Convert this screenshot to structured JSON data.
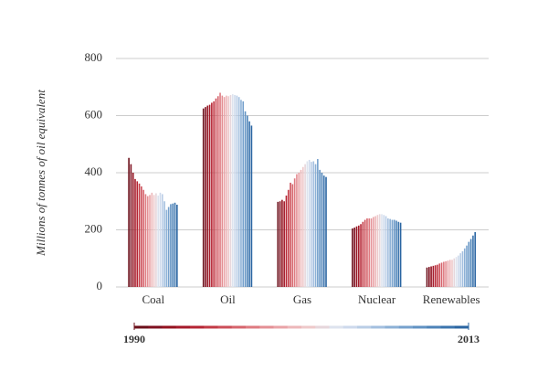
{
  "chart_data": {
    "type": "bar",
    "ylabel": "Millions of tonnes of oil equivalent",
    "categories": [
      "Coal",
      "Oil",
      "Gas",
      "Nuclear",
      "Renewables"
    ],
    "ylim": [
      0,
      800
    ],
    "yticks": [
      0,
      200,
      400,
      600,
      800
    ],
    "grid": true,
    "colorbar": {
      "labels": [
        "1990",
        "2013"
      ]
    },
    "series": [
      {
        "color": "#6b0f1a",
        "values": [
          452,
          625,
          298,
          205,
          68
        ]
      },
      {
        "color": "#7f1020",
        "values": [
          430,
          630,
          300,
          208,
          70
        ]
      },
      {
        "color": "#93121f",
        "values": [
          400,
          635,
          305,
          212,
          72
        ]
      },
      {
        "color": "#a51a2a",
        "values": [
          378,
          638,
          300,
          215,
          74
        ]
      },
      {
        "color": "#b52433",
        "values": [
          370,
          645,
          320,
          220,
          76
        ]
      },
      {
        "color": "#c23a45",
        "values": [
          362,
          650,
          340,
          228,
          78
        ]
      },
      {
        "color": "#cc4e58",
        "values": [
          352,
          660,
          365,
          235,
          82
        ]
      },
      {
        "color": "#d6646c",
        "values": [
          340,
          668,
          360,
          240,
          85
        ]
      },
      {
        "color": "#de7a80",
        "values": [
          325,
          680,
          380,
          240,
          88
        ]
      },
      {
        "color": "#e48f94",
        "values": [
          318,
          670,
          395,
          240,
          90
        ]
      },
      {
        "color": "#e9a3a7",
        "values": [
          322,
          665,
          400,
          245,
          92
        ]
      },
      {
        "color": "#edb7b9",
        "values": [
          330,
          670,
          410,
          248,
          95
        ]
      },
      {
        "color": "#eec9ca",
        "values": [
          322,
          668,
          420,
          252,
          95
        ]
      },
      {
        "color": "#e6d6db",
        "values": [
          328,
          672,
          430,
          255,
          100
        ]
      },
      {
        "color": "#dde3ee",
        "values": [
          320,
          675,
          440,
          255,
          105
        ]
      },
      {
        "color": "#cdd9ec",
        "values": [
          330,
          672,
          445,
          252,
          110
        ]
      },
      {
        "color": "#b9cde6",
        "values": [
          325,
          670,
          438,
          248,
          118
        ]
      },
      {
        "color": "#a3bfdf",
        "values": [
          300,
          665,
          440,
          240,
          125
        ]
      },
      {
        "color": "#8cb0d6",
        "values": [
          270,
          655,
          430,
          238,
          135
        ]
      },
      {
        "color": "#76a1cd",
        "values": [
          280,
          650,
          448,
          235,
          145
        ]
      },
      {
        "color": "#6192c3",
        "values": [
          290,
          615,
          410,
          235,
          158
        ]
      },
      {
        "color": "#4d83b8",
        "values": [
          292,
          600,
          400,
          232,
          168
        ]
      },
      {
        "color": "#3b74ad",
        "values": [
          295,
          580,
          390,
          228,
          180
        ]
      },
      {
        "color": "#2a65a2",
        "values": [
          288,
          565,
          385,
          225,
          192
        ]
      }
    ]
  }
}
